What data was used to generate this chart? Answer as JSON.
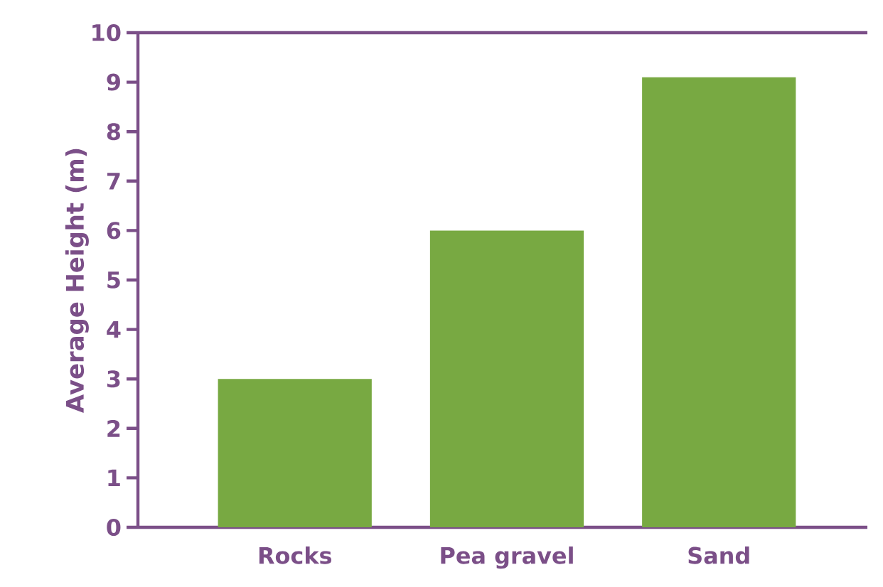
{
  "chart_data": {
    "type": "bar",
    "ylabel": "Average Height (m)",
    "categories": [
      "Rocks",
      "Pea gravel",
      "Sand"
    ],
    "values": [
      3,
      6,
      9.1
    ],
    "color": "#78a942",
    "ylim": [
      0,
      10
    ],
    "yticks": [
      0,
      1,
      2,
      3,
      4,
      5,
      6,
      7,
      8,
      9,
      10
    ],
    "grid": false
  }
}
